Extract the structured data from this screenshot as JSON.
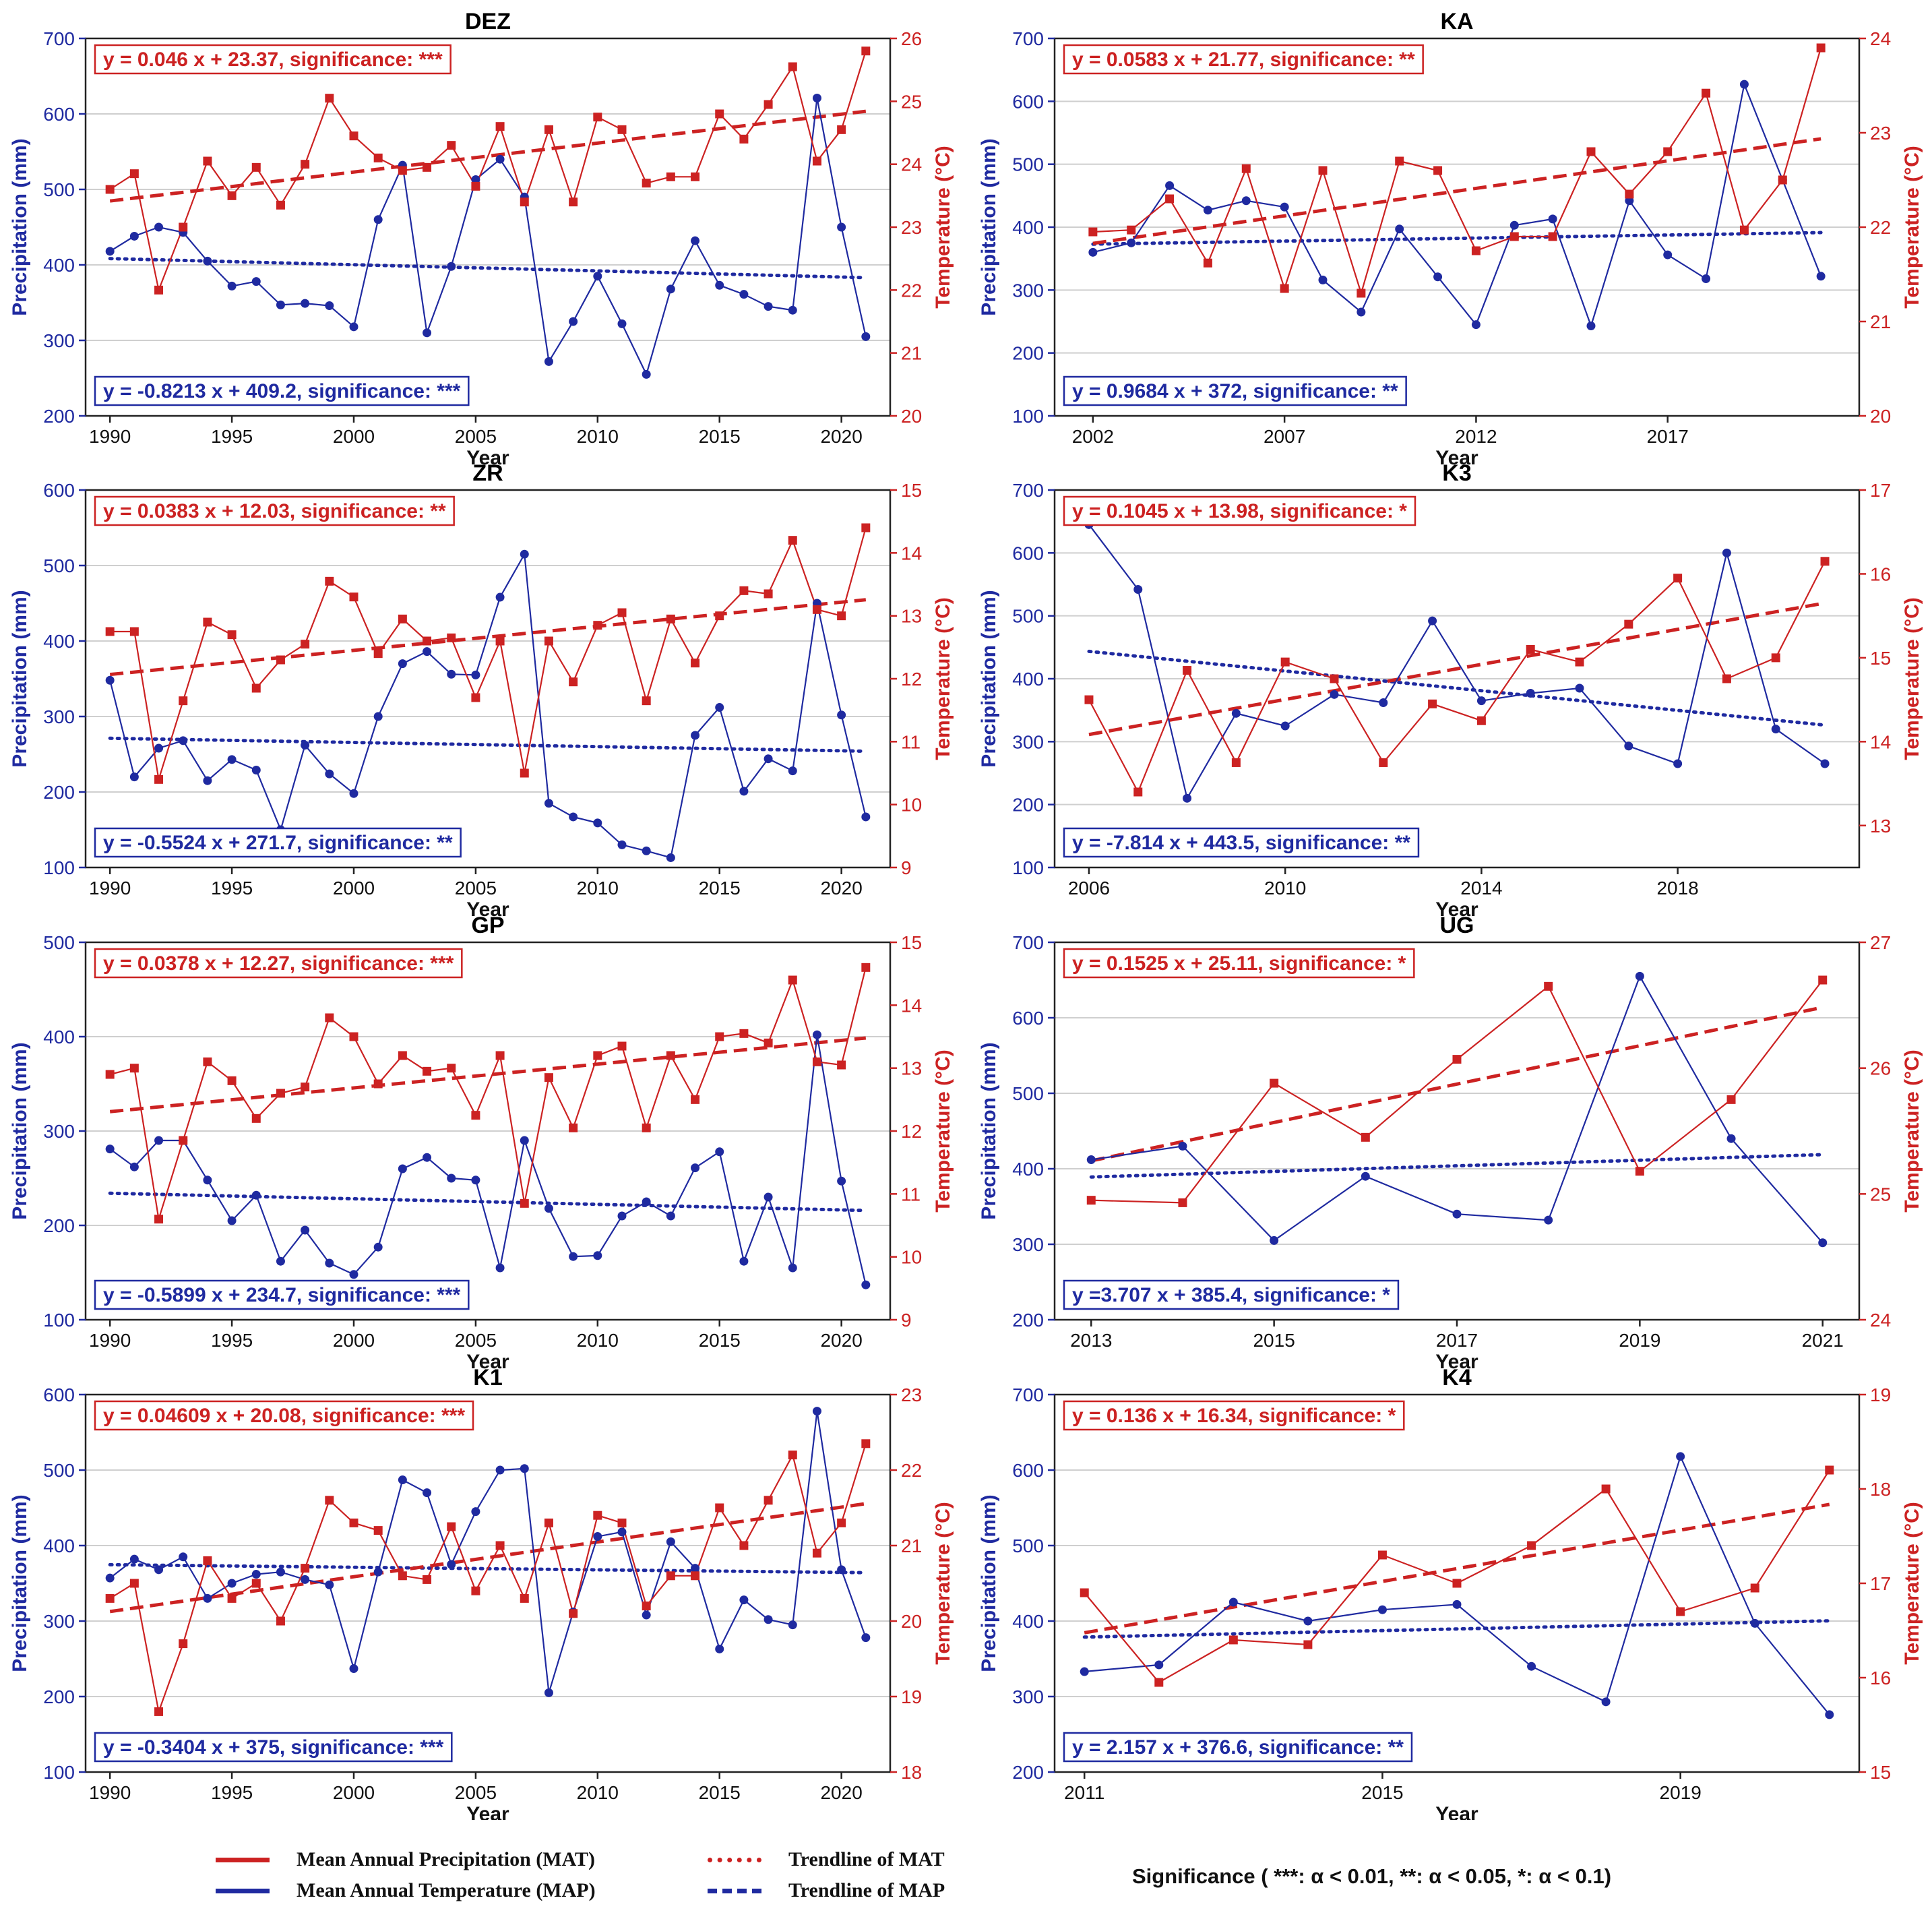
{
  "colors": {
    "temp": "#cc2222",
    "precip": "#1f2aa0",
    "grid": "#cfcfcf"
  },
  "axis_labels": {
    "x": "Year",
    "y_left": "Precipitation (mm)",
    "y_right": "Temperature (°C)"
  },
  "legend": {
    "mat_label": "Mean Annual Precipitation (MAT)",
    "map_label": "Mean Annual Temperature (MAP)",
    "trend_mat_label": "Trendline of MAT",
    "trend_map_label": "Trendline of MAP",
    "significance_note": "Significance ( ***: α < 0.01, **: α < 0.05, *: α < 0.1)"
  },
  "chart_data": [
    {
      "type": "line",
      "title": "DEZ",
      "x": [
        1990,
        1991,
        1992,
        1993,
        1994,
        1995,
        1996,
        1997,
        1998,
        1999,
        2000,
        2001,
        2002,
        2003,
        2004,
        2005,
        2006,
        2007,
        2008,
        2009,
        2010,
        2011,
        2012,
        2013,
        2014,
        2015,
        2016,
        2017,
        2018,
        2019,
        2020,
        2021
      ],
      "xlim": [
        1989,
        2022
      ],
      "xticks": [
        1990,
        1995,
        2000,
        2005,
        2010,
        2015,
        2020
      ],
      "precip": [
        418,
        438,
        450,
        443,
        405,
        372,
        378,
        347,
        349,
        346,
        318,
        460,
        532,
        310,
        398,
        513,
        540,
        490,
        272,
        325,
        385,
        322,
        255,
        368,
        432,
        373,
        361,
        345,
        340,
        621,
        450,
        305
      ],
      "temp": [
        23.6,
        23.85,
        22.0,
        23.0,
        24.05,
        23.5,
        23.95,
        23.35,
        24.0,
        25.05,
        24.45,
        24.1,
        23.9,
        23.95,
        24.3,
        23.65,
        24.6,
        23.4,
        24.55,
        23.4,
        24.75,
        24.55,
        23.7,
        23.8,
        23.8,
        24.8,
        24.4,
        24.95,
        25.55,
        24.05,
        24.55,
        25.8
      ],
      "ylim_left": [
        200,
        700
      ],
      "yticks_left": [
        200,
        300,
        400,
        500,
        600,
        700
      ],
      "ylim_right": [
        20,
        26
      ],
      "yticks_right": [
        20,
        21,
        22,
        23,
        24,
        25,
        26
      ],
      "temp_eq": "y = 0.046 x + 23.37, significance: ***",
      "precip_eq": "y = -0.8213 x + 409.2, significance: ***",
      "temp_trend": [
        23.416,
        24.842
      ],
      "precip_trend": [
        408.38,
        383.09
      ]
    },
    {
      "type": "line",
      "title": "KA",
      "x": [
        2002,
        2003,
        2004,
        2005,
        2006,
        2007,
        2008,
        2009,
        2010,
        2011,
        2012,
        2013,
        2014,
        2015,
        2016,
        2017,
        2018,
        2019,
        2020,
        2021
      ],
      "xlim": [
        2001,
        2022
      ],
      "xticks": [
        2002,
        2007,
        2012,
        2017
      ],
      "precip": [
        360,
        375,
        466,
        427,
        442,
        432,
        316,
        265,
        397,
        321,
        245,
        403,
        413,
        243,
        442,
        356,
        318,
        627,
        475,
        322
      ],
      "temp": [
        21.95,
        21.97,
        22.3,
        21.62,
        22.62,
        21.35,
        22.6,
        21.3,
        22.7,
        22.6,
        21.75,
        21.9,
        21.9,
        22.8,
        22.35,
        22.8,
        23.42,
        21.97,
        22.5,
        23.9
      ],
      "ylim_left": [
        100,
        700
      ],
      "yticks_left": [
        100,
        200,
        300,
        400,
        500,
        600,
        700
      ],
      "ylim_right": [
        20,
        24
      ],
      "yticks_right": [
        20,
        21,
        22,
        23,
        24
      ],
      "temp_eq": "y = 0.0583 x + 21.77, significance: **",
      "precip_eq": "y = 0.9684 x + 372, significance: **",
      "temp_trend": [
        21.828,
        22.936
      ],
      "precip_trend": [
        372.97,
        391.37
      ]
    },
    {
      "type": "line",
      "title": "ZR",
      "x": [
        1990,
        1991,
        1992,
        1993,
        1994,
        1995,
        1996,
        1997,
        1998,
        1999,
        2000,
        2001,
        2002,
        2003,
        2004,
        2005,
        2006,
        2007,
        2008,
        2009,
        2010,
        2011,
        2012,
        2013,
        2014,
        2015,
        2016,
        2017,
        2018,
        2019,
        2020,
        2021
      ],
      "xlim": [
        1989,
        2022
      ],
      "xticks": [
        1990,
        1995,
        2000,
        2005,
        2010,
        2015,
        2020
      ],
      "precip": [
        348,
        220,
        258,
        268,
        215,
        243,
        229,
        150,
        262,
        224,
        198,
        300,
        370,
        386,
        356,
        355,
        458,
        515,
        185,
        167,
        159,
        130,
        122,
        113,
        275,
        312,
        201,
        244,
        228,
        450,
        302,
        167
      ],
      "temp": [
        12.75,
        12.75,
        10.4,
        11.65,
        12.9,
        12.7,
        11.85,
        12.3,
        12.55,
        13.55,
        13.3,
        12.4,
        12.95,
        12.6,
        12.65,
        11.7,
        12.6,
        10.5,
        12.6,
        11.95,
        12.85,
        13.05,
        11.65,
        12.95,
        12.25,
        13.0,
        13.4,
        13.35,
        14.2,
        13.1,
        13.0,
        14.4
      ],
      "ylim_left": [
        100,
        600
      ],
      "yticks_left": [
        100,
        200,
        300,
        400,
        500,
        600
      ],
      "ylim_right": [
        9,
        15
      ],
      "yticks_right": [
        9,
        10,
        11,
        12,
        13,
        14,
        15
      ],
      "temp_eq": "y = 0.0383 x + 12.03, significance: **",
      "precip_eq": "y = -0.5524 x + 271.7, significance: **",
      "temp_trend": [
        12.068,
        13.256
      ],
      "precip_trend": [
        271.15,
        254.02
      ]
    },
    {
      "type": "line",
      "title": "K3",
      "x": [
        2006,
        2007,
        2008,
        2009,
        2010,
        2011,
        2012,
        2013,
        2014,
        2015,
        2016,
        2017,
        2018,
        2019,
        2020,
        2021
      ],
      "xlim": [
        2005.3,
        2021.7
      ],
      "xticks": [
        2006,
        2010,
        2014,
        2018
      ],
      "precip": [
        645,
        542,
        210,
        345,
        325,
        375,
        362,
        492,
        365,
        377,
        385,
        293,
        265,
        600,
        320,
        265
      ],
      "temp": [
        14.5,
        13.4,
        14.85,
        13.75,
        14.95,
        14.75,
        13.75,
        14.45,
        14.25,
        15.1,
        14.95,
        15.4,
        15.95,
        14.75,
        15.0,
        16.15
      ],
      "ylim_left": [
        100,
        700
      ],
      "yticks_left": [
        100,
        200,
        300,
        400,
        500,
        600,
        700
      ],
      "ylim_right": [
        12.5,
        17
      ],
      "yticks_right": [
        13,
        14,
        15,
        16,
        17
      ],
      "temp_eq": "y = 0.1045 x + 13.98, significance: *",
      "precip_eq": "y = -7.814 x + 443.5, significance: **",
      "temp_trend": [
        14.085,
        15.653
      ],
      "precip_trend": [
        443.5,
        326.3
      ]
    },
    {
      "type": "line",
      "title": "GP",
      "x": [
        1990,
        1991,
        1992,
        1993,
        1994,
        1995,
        1996,
        1997,
        1998,
        1999,
        2000,
        2001,
        2002,
        2003,
        2004,
        2005,
        2006,
        2007,
        2008,
        2009,
        2010,
        2011,
        2012,
        2013,
        2014,
        2015,
        2016,
        2017,
        2018,
        2019,
        2020,
        2021
      ],
      "xlim": [
        1989,
        2022
      ],
      "xticks": [
        1990,
        1995,
        2000,
        2005,
        2010,
        2015,
        2020
      ],
      "precip": [
        281,
        262,
        290,
        290,
        248,
        205,
        232,
        162,
        195,
        160,
        148,
        177,
        260,
        272,
        250,
        248,
        155,
        290,
        218,
        167,
        168,
        210,
        225,
        210,
        261,
        278,
        162,
        230,
        155,
        402,
        247,
        137
      ],
      "temp": [
        12.9,
        13.0,
        10.6,
        11.85,
        13.1,
        12.8,
        12.2,
        12.6,
        12.7,
        13.8,
        13.5,
        12.75,
        13.2,
        12.95,
        13.0,
        12.25,
        13.2,
        10.85,
        12.85,
        12.05,
        13.2,
        13.35,
        12.05,
        13.2,
        12.5,
        13.5,
        13.55,
        13.4,
        14.4,
        13.1,
        13.05,
        14.6
      ],
      "ylim_left": [
        100,
        500
      ],
      "yticks_left": [
        100,
        200,
        300,
        400,
        500
      ],
      "ylim_right": [
        9,
        15
      ],
      "yticks_right": [
        9,
        10,
        11,
        12,
        13,
        14,
        15
      ],
      "temp_eq": "y = 0.0378 x + 12.27, significance: ***",
      "precip_eq": "y = -0.5899 x + 234.7, significance: ***",
      "temp_trend": [
        12.308,
        13.479
      ],
      "precip_trend": [
        234.11,
        215.82
      ]
    },
    {
      "type": "line",
      "title": "UG",
      "x": [
        2013,
        2014,
        2015,
        2016,
        2017,
        2018,
        2019,
        2020,
        2021
      ],
      "xlim": [
        2012.6,
        2021.4
      ],
      "xticks": [
        2013,
        2015,
        2017,
        2019,
        2021
      ],
      "precip": [
        412,
        430,
        305,
        390,
        340,
        332,
        655,
        440,
        302
      ],
      "temp": [
        24.95,
        24.93,
        25.88,
        25.45,
        26.07,
        26.65,
        25.18,
        25.75,
        26.7
      ],
      "ylim_left": [
        200,
        700
      ],
      "yticks_left": [
        200,
        300,
        400,
        500,
        600,
        700
      ],
      "ylim_right": [
        24,
        27
      ],
      "yticks_right": [
        24,
        25,
        26,
        27
      ],
      "temp_eq": "y = 0.1525 x + 25.11, significance: *",
      "precip_eq": "y =3.707 x + 385.4, significance: *",
      "temp_trend": [
        25.263,
        26.483
      ],
      "precip_trend": [
        389.11,
        418.76
      ]
    },
    {
      "type": "line",
      "title": "K1",
      "x": [
        1990,
        1991,
        1992,
        1993,
        1994,
        1995,
        1996,
        1997,
        1998,
        1999,
        2000,
        2001,
        2002,
        2003,
        2004,
        2005,
        2006,
        2007,
        2008,
        2009,
        2010,
        2011,
        2012,
        2013,
        2014,
        2015,
        2016,
        2017,
        2018,
        2019,
        2020,
        2021
      ],
      "xlim": [
        1989,
        2022
      ],
      "xticks": [
        1990,
        1995,
        2000,
        2005,
        2010,
        2015,
        2020
      ],
      "precip": [
        357,
        382,
        368,
        385,
        330,
        350,
        362,
        365,
        355,
        348,
        237,
        365,
        487,
        470,
        375,
        445,
        500,
        502,
        205,
        312,
        412,
        418,
        308,
        405,
        370,
        263,
        328,
        302,
        295,
        578,
        368,
        278
      ],
      "temp": [
        20.3,
        20.5,
        18.8,
        19.7,
        20.8,
        20.3,
        20.5,
        20.0,
        20.7,
        21.6,
        21.3,
        21.2,
        20.6,
        20.55,
        21.25,
        20.4,
        21.0,
        20.3,
        21.3,
        20.1,
        21.4,
        21.3,
        20.2,
        20.6,
        20.6,
        21.5,
        21.0,
        21.6,
        22.2,
        20.9,
        21.3,
        22.35
      ],
      "ylim_left": [
        100,
        600
      ],
      "yticks_left": [
        100,
        200,
        300,
        400,
        500,
        600
      ],
      "ylim_right": [
        18,
        23
      ],
      "yticks_right": [
        18,
        19,
        20,
        21,
        22,
        23
      ],
      "temp_eq": "y = 0.04609 x + 20.08, significance: ***",
      "precip_eq": "y = -0.3404 x + 375, significance: ***",
      "temp_trend": [
        20.126,
        21.555
      ],
      "precip_trend": [
        374.66,
        364.11
      ]
    },
    {
      "type": "line",
      "title": "K4",
      "x": [
        2011,
        2012,
        2013,
        2014,
        2015,
        2016,
        2017,
        2018,
        2019,
        2020,
        2021
      ],
      "xlim": [
        2010.6,
        2021.4
      ],
      "xticks": [
        2011,
        2015,
        2019
      ],
      "precip": [
        333,
        342,
        425,
        400,
        415,
        422,
        340,
        293,
        618,
        397,
        276
      ],
      "temp": [
        16.9,
        15.95,
        16.4,
        16.35,
        17.3,
        17.0,
        17.4,
        18.0,
        16.7,
        16.95,
        18.2
      ],
      "ylim_left": [
        200,
        700
      ],
      "yticks_left": [
        200,
        300,
        400,
        500,
        600,
        700
      ],
      "ylim_right": [
        15,
        19
      ],
      "yticks_right": [
        15,
        16,
        17,
        18,
        19
      ],
      "temp_eq": "y = 0.136 x + 16.34, significance: *",
      "precip_eq": "y = 2.157 x + 376.6, significance: **",
      "temp_trend": [
        16.476,
        17.836
      ],
      "precip_trend": [
        378.76,
        400.33
      ]
    }
  ]
}
